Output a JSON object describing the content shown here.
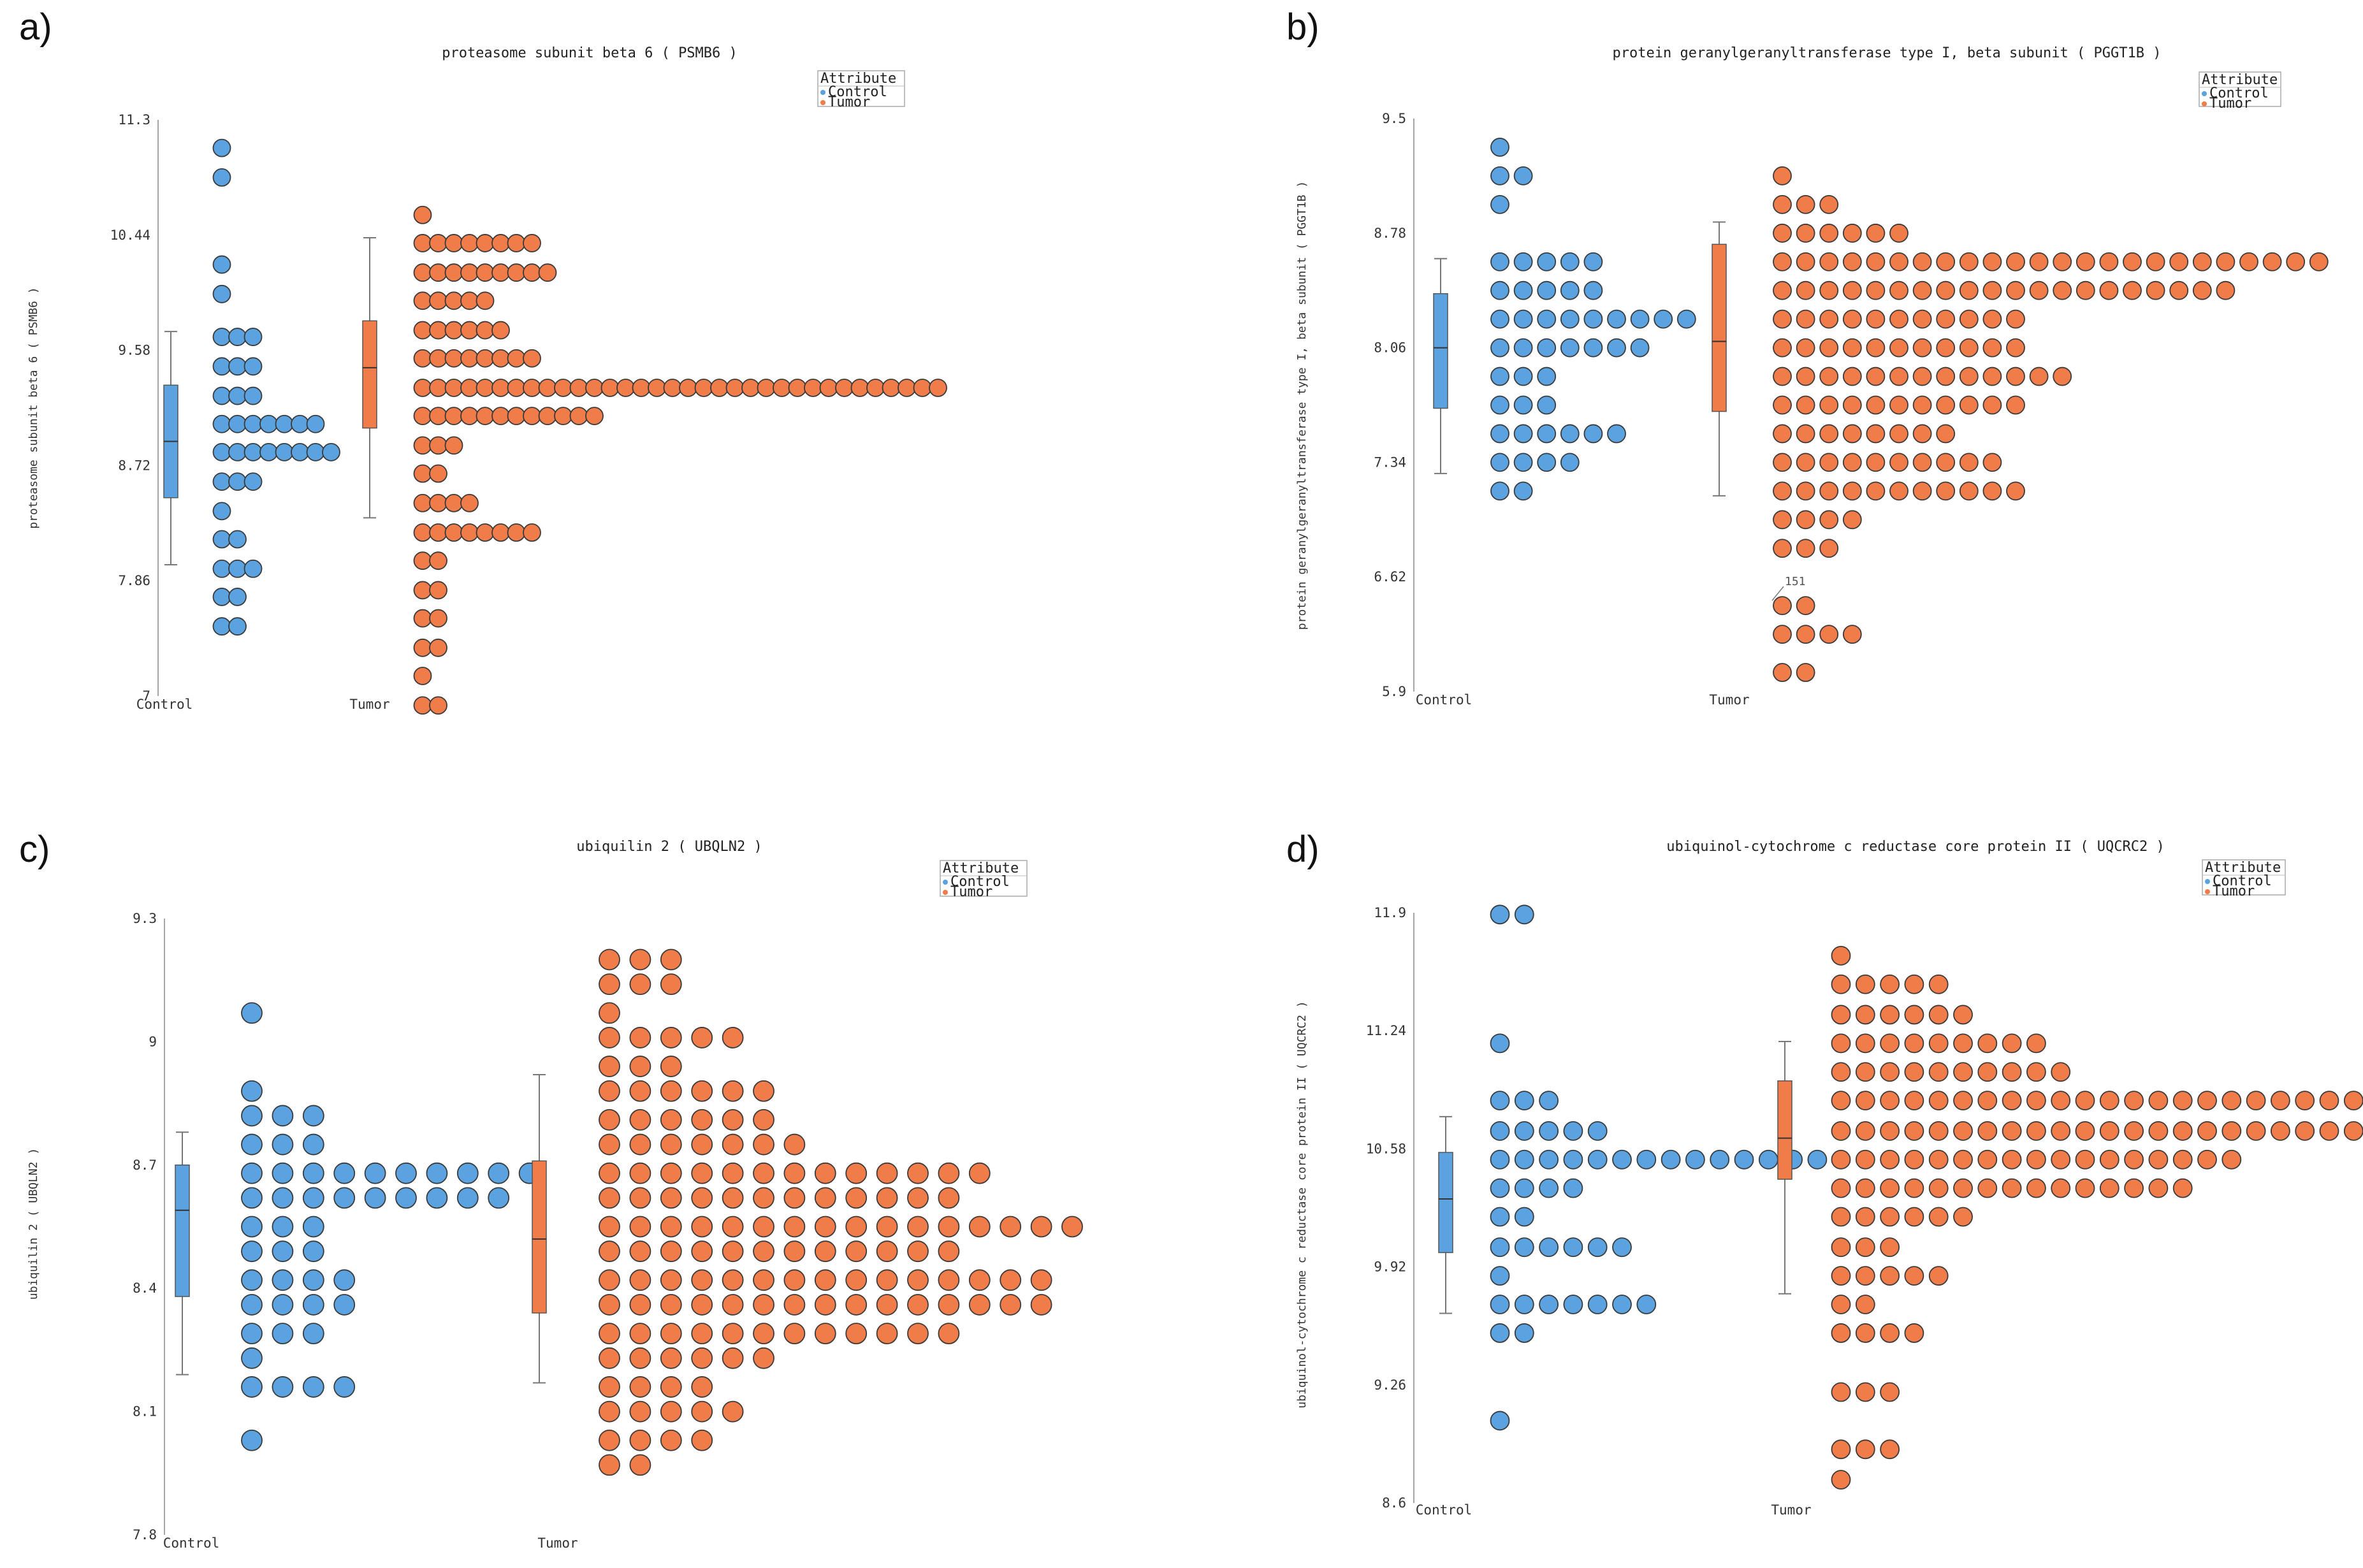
{
  "colors": {
    "control": "#5ba3e0",
    "tumor": "#f07c4a",
    "dot_stroke": "#3a3a3a",
    "axis": "#888888"
  },
  "legend": {
    "title": "Attribute",
    "items": [
      "Control",
      "Tumor"
    ]
  },
  "chart_data": [
    {
      "panel": "a)",
      "type": "scatter",
      "subtype": "beeswarm-with-boxplot",
      "title": "proteasome subunit beta 6  ( PSMB6 )",
      "ylabel": "proteasome subunit beta 6  ( PSMB6 )",
      "categories": [
        "Control",
        "Tumor"
      ],
      "ylim": [
        7.0,
        11.3
      ],
      "yticks": [
        7.0,
        7.86,
        8.72,
        9.58,
        10.44,
        11.3
      ],
      "legend_position": "top-right",
      "series": [
        {
          "name": "Control",
          "box": {
            "min": 7.98,
            "q1": 8.48,
            "median": 8.9,
            "q3": 9.32,
            "max": 9.72
          },
          "swarm": [
            {
              "y": 11.09,
              "n": 1
            },
            {
              "y": 10.87,
              "n": 1
            },
            {
              "y": 10.22,
              "n": 1
            },
            {
              "y": 10.0,
              "n": 1
            },
            {
              "y": 9.68,
              "n": 3
            },
            {
              "y": 9.46,
              "n": 3
            },
            {
              "y": 9.24,
              "n": 3
            },
            {
              "y": 9.03,
              "n": 7
            },
            {
              "y": 8.82,
              "n": 8
            },
            {
              "y": 8.6,
              "n": 3
            },
            {
              "y": 8.38,
              "n": 1
            },
            {
              "y": 8.17,
              "n": 2
            },
            {
              "y": 7.95,
              "n": 3
            },
            {
              "y": 7.74,
              "n": 2
            },
            {
              "y": 7.52,
              "n": 2
            }
          ]
        },
        {
          "name": "Tumor",
          "box": {
            "min": 8.33,
            "q1": 9.0,
            "median": 9.45,
            "q3": 9.8,
            "max": 10.42
          },
          "swarm": [
            {
              "y": 10.59,
              "n": 1
            },
            {
              "y": 10.38,
              "n": 8
            },
            {
              "y": 10.16,
              "n": 9
            },
            {
              "y": 9.95,
              "n": 5
            },
            {
              "y": 9.73,
              "n": 6
            },
            {
              "y": 9.52,
              "n": 8
            },
            {
              "y": 9.3,
              "n": 34
            },
            {
              "y": 9.09,
              "n": 12
            },
            {
              "y": 8.87,
              "n": 3
            },
            {
              "y": 8.66,
              "n": 2
            },
            {
              "y": 8.44,
              "n": 4
            },
            {
              "y": 8.22,
              "n": 8
            },
            {
              "y": 8.01,
              "n": 2
            },
            {
              "y": 7.79,
              "n": 2
            },
            {
              "y": 7.58,
              "n": 2
            },
            {
              "y": 7.36,
              "n": 2
            },
            {
              "y": 7.15,
              "n": 1
            },
            {
              "y": 6.93,
              "n": 2
            }
          ]
        }
      ]
    },
    {
      "panel": "b)",
      "type": "scatter",
      "subtype": "beeswarm-with-boxplot",
      "title": "protein geranylgeranyltransferase type I, beta subunit  ( PGGT1B )",
      "ylabel": "protein geranylgeranyltransferase type I, beta subunit  ( PGGT1B )",
      "categories": [
        "Control",
        "Tumor"
      ],
      "ylim": [
        5.9,
        9.5
      ],
      "yticks": [
        5.9,
        6.62,
        7.34,
        8.06,
        8.78,
        9.5
      ],
      "annotation": "151",
      "legend_position": "top-right",
      "series": [
        {
          "name": "Control",
          "box": {
            "min": 7.27,
            "q1": 7.68,
            "median": 8.06,
            "q3": 8.4,
            "max": 8.62
          },
          "swarm": [
            {
              "y": 9.32,
              "n": 1
            },
            {
              "y": 9.14,
              "n": 2
            },
            {
              "y": 8.96,
              "n": 1
            },
            {
              "y": 8.6,
              "n": 5
            },
            {
              "y": 8.42,
              "n": 5
            },
            {
              "y": 8.24,
              "n": 9
            },
            {
              "y": 8.06,
              "n": 7
            },
            {
              "y": 7.88,
              "n": 3
            },
            {
              "y": 7.7,
              "n": 3
            },
            {
              "y": 7.52,
              "n": 6
            },
            {
              "y": 7.34,
              "n": 4
            },
            {
              "y": 7.16,
              "n": 2
            }
          ]
        },
        {
          "name": "Tumor",
          "box": {
            "min": 7.13,
            "q1": 7.66,
            "median": 8.1,
            "q3": 8.71,
            "max": 8.85
          },
          "swarm": [
            {
              "y": 9.14,
              "n": 1
            },
            {
              "y": 8.96,
              "n": 3
            },
            {
              "y": 8.78,
              "n": 6
            },
            {
              "y": 8.6,
              "n": 24
            },
            {
              "y": 8.42,
              "n": 20
            },
            {
              "y": 8.24,
              "n": 11
            },
            {
              "y": 8.06,
              "n": 11
            },
            {
              "y": 7.88,
              "n": 13
            },
            {
              "y": 7.7,
              "n": 11
            },
            {
              "y": 7.52,
              "n": 8
            },
            {
              "y": 7.34,
              "n": 10
            },
            {
              "y": 7.16,
              "n": 11
            },
            {
              "y": 6.98,
              "n": 4
            },
            {
              "y": 6.8,
              "n": 3
            },
            {
              "y": 6.44,
              "n": 2
            },
            {
              "y": 6.26,
              "n": 4
            },
            {
              "y": 6.02,
              "n": 2
            }
          ]
        }
      ]
    },
    {
      "panel": "c)",
      "type": "scatter",
      "subtype": "beeswarm-with-boxplot",
      "title": "ubiquilin 2  ( UBQLN2 )",
      "ylabel": "ubiquilin 2  ( UBQLN2 )",
      "categories": [
        "Control",
        "Tumor"
      ],
      "ylim": [
        7.8,
        9.3
      ],
      "yticks": [
        7.8,
        8.1,
        8.4,
        8.7,
        9.0,
        9.3
      ],
      "legend_position": "top-right",
      "series": [
        {
          "name": "Control",
          "box": {
            "min": 8.19,
            "q1": 8.38,
            "median": 8.59,
            "q3": 8.7,
            "max": 8.78
          },
          "swarm": [
            {
              "y": 9.07,
              "n": 1
            },
            {
              "y": 8.88,
              "n": 1
            },
            {
              "y": 8.82,
              "n": 3
            },
            {
              "y": 8.75,
              "n": 3
            },
            {
              "y": 8.68,
              "n": 10
            },
            {
              "y": 8.62,
              "n": 9
            },
            {
              "y": 8.55,
              "n": 3
            },
            {
              "y": 8.49,
              "n": 3
            },
            {
              "y": 8.42,
              "n": 4
            },
            {
              "y": 8.36,
              "n": 4
            },
            {
              "y": 8.29,
              "n": 3
            },
            {
              "y": 8.23,
              "n": 1
            },
            {
              "y": 8.16,
              "n": 4
            },
            {
              "y": 8.03,
              "n": 1
            }
          ]
        },
        {
          "name": "Tumor",
          "box": {
            "min": 8.17,
            "q1": 8.34,
            "median": 8.52,
            "q3": 8.71,
            "max": 8.92
          },
          "swarm": [
            {
              "y": 9.2,
              "n": 3
            },
            {
              "y": 9.14,
              "n": 3
            },
            {
              "y": 9.07,
              "n": 1
            },
            {
              "y": 9.01,
              "n": 5
            },
            {
              "y": 8.94,
              "n": 3
            },
            {
              "y": 8.88,
              "n": 6
            },
            {
              "y": 8.81,
              "n": 6
            },
            {
              "y": 8.75,
              "n": 7
            },
            {
              "y": 8.68,
              "n": 13
            },
            {
              "y": 8.62,
              "n": 12
            },
            {
              "y": 8.55,
              "n": 16
            },
            {
              "y": 8.49,
              "n": 12
            },
            {
              "y": 8.42,
              "n": 15
            },
            {
              "y": 8.36,
              "n": 15
            },
            {
              "y": 8.29,
              "n": 12
            },
            {
              "y": 8.23,
              "n": 6
            },
            {
              "y": 8.16,
              "n": 4
            },
            {
              "y": 8.1,
              "n": 5
            },
            {
              "y": 8.03,
              "n": 4
            },
            {
              "y": 7.97,
              "n": 2
            }
          ]
        }
      ]
    },
    {
      "panel": "d)",
      "type": "scatter",
      "subtype": "beeswarm-with-boxplot",
      "title": "ubiquinol-cytochrome c reductase core protein II  ( UQCRC2 )",
      "ylabel": "ubiquinol-cytochrome c reductase core protein II  ( UQCRC2 )",
      "categories": [
        "Control",
        "Tumor"
      ],
      "ylim": [
        8.6,
        11.9
      ],
      "yticks": [
        8.6,
        9.26,
        9.92,
        10.58,
        11.24,
        11.9
      ],
      "legend_position": "top-right",
      "series": [
        {
          "name": "Control",
          "box": {
            "min": 9.66,
            "q1": 10.0,
            "median": 10.3,
            "q3": 10.56,
            "max": 10.76
          },
          "swarm": [
            {
              "y": 11.89,
              "n": 2
            },
            {
              "y": 11.17,
              "n": 1
            },
            {
              "y": 10.85,
              "n": 3
            },
            {
              "y": 10.68,
              "n": 5
            },
            {
              "y": 10.52,
              "n": 14
            },
            {
              "y": 10.36,
              "n": 4
            },
            {
              "y": 10.2,
              "n": 2
            },
            {
              "y": 10.03,
              "n": 6
            },
            {
              "y": 9.87,
              "n": 1
            },
            {
              "y": 9.71,
              "n": 7
            },
            {
              "y": 9.55,
              "n": 2
            },
            {
              "y": 9.06,
              "n": 1
            }
          ]
        },
        {
          "name": "Tumor",
          "box": {
            "min": 9.77,
            "q1": 10.41,
            "median": 10.64,
            "q3": 10.96,
            "max": 11.18
          },
          "swarm": [
            {
              "y": 11.66,
              "n": 1
            },
            {
              "y": 11.5,
              "n": 5
            },
            {
              "y": 11.33,
              "n": 6
            },
            {
              "y": 11.17,
              "n": 9
            },
            {
              "y": 11.01,
              "n": 10
            },
            {
              "y": 10.85,
              "n": 24
            },
            {
              "y": 10.68,
              "n": 27
            },
            {
              "y": 10.52,
              "n": 17
            },
            {
              "y": 10.36,
              "n": 15
            },
            {
              "y": 10.2,
              "n": 6
            },
            {
              "y": 10.03,
              "n": 3
            },
            {
              "y": 9.87,
              "n": 5
            },
            {
              "y": 9.71,
              "n": 2
            },
            {
              "y": 9.55,
              "n": 4
            },
            {
              "y": 9.22,
              "n": 3
            },
            {
              "y": 8.9,
              "n": 3
            },
            {
              "y": 8.73,
              "n": 1
            }
          ]
        }
      ]
    }
  ]
}
